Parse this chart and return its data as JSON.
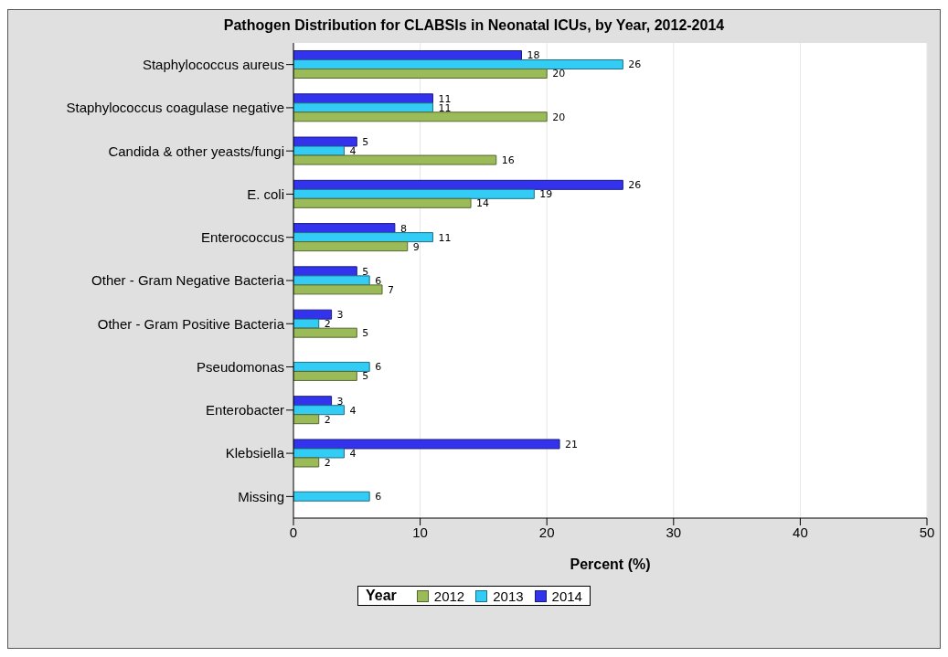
{
  "chart_data": {
    "type": "bar",
    "orientation": "horizontal",
    "title": "Pathogen Distribution for CLABSIs in Neonatal ICUs, by Year, 2012-2014",
    "xlabel": "Percent (%)",
    "legend_title": "Year",
    "categories": [
      "Staphylococcus aureus",
      "Staphylococcus coagulase negative",
      "Candida & other yeasts/fungi",
      "E. coli",
      "Enterococcus",
      "Other - Gram Negative Bacteria",
      "Other - Gram Positive Bacteria",
      "Pseudomonas",
      "Enterobacter",
      "Klebsiella",
      "Missing"
    ],
    "series": [
      {
        "name": "2012",
        "color": "#9bbb59",
        "values": [
          20,
          20,
          16,
          14,
          9,
          7,
          5,
          5,
          2,
          2,
          null
        ]
      },
      {
        "name": "2013",
        "color": "#33ccf5",
        "values": [
          26,
          11,
          4,
          19,
          11,
          6,
          2,
          6,
          4,
          4,
          6
        ]
      },
      {
        "name": "2014",
        "color": "#3333ee",
        "values": [
          18,
          11,
          5,
          26,
          8,
          5,
          3,
          null,
          3,
          21,
          null
        ]
      }
    ],
    "xlim": [
      0,
      50
    ],
    "xticks": [
      0,
      10,
      20,
      30,
      40,
      50
    ],
    "grid": "x",
    "legend": "bottom",
    "data_labels": true
  }
}
